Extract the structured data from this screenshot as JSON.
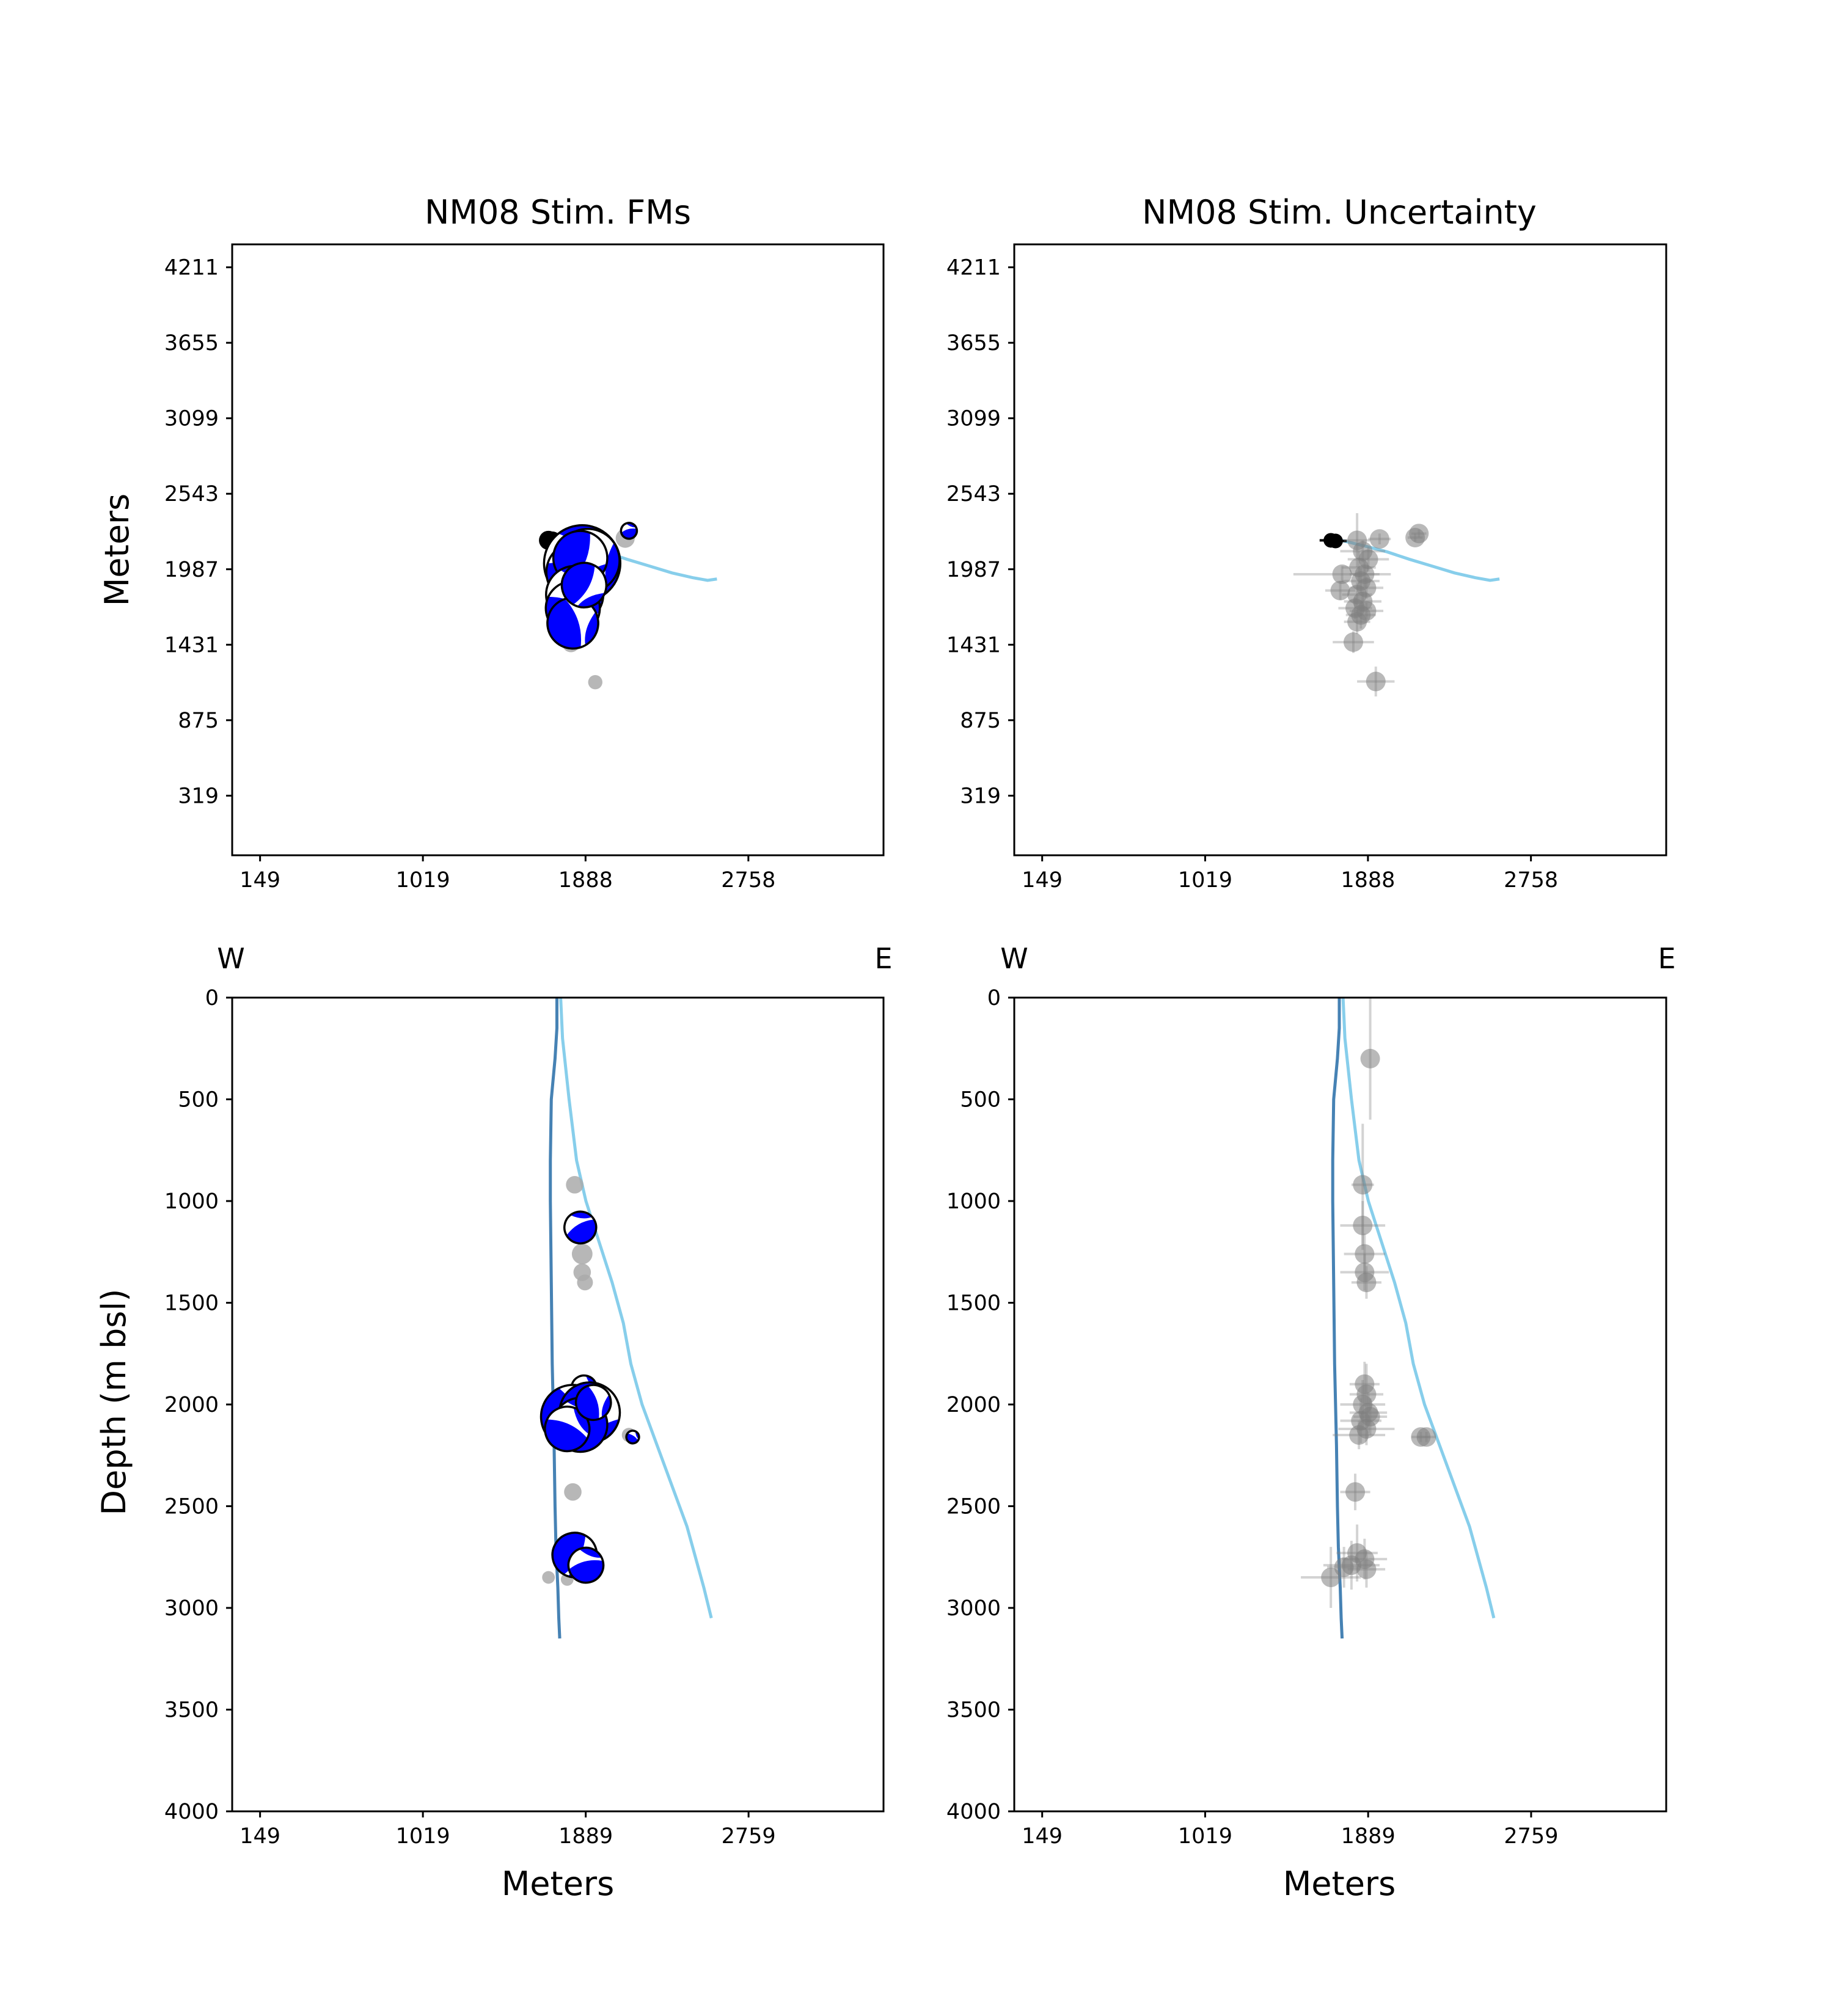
{
  "figure": {
    "panels": [
      {
        "id": "p1",
        "title": "NM08 Stim. FMs",
        "ylabel": "Meters",
        "xlabel": ""
      },
      {
        "id": "p2",
        "title": "NM08 Stim. Uncertainty",
        "ylabel": "",
        "xlabel": ""
      },
      {
        "id": "p3",
        "title": "",
        "ylabel": "Depth (m bsl)",
        "xlabel": "Meters",
        "compass": [
          "W",
          "E"
        ]
      },
      {
        "id": "p4",
        "title": "",
        "ylabel": "",
        "xlabel": "Meters",
        "compass": [
          "W",
          "E"
        ]
      }
    ]
  },
  "chart_data": [
    {
      "type": "scatter",
      "title": "NM08 Stim. FMs",
      "xlabel": "",
      "ylabel": "Meters",
      "xlim": [
        0,
        3480
      ],
      "ylim": [
        -120,
        4380
      ],
      "xticks": [
        "149",
        "1019",
        "1888",
        "2758"
      ],
      "xtick_values": [
        149,
        1019,
        1888,
        2758
      ],
      "yticks": [
        "319",
        "875",
        "1431",
        "1987",
        "2543",
        "3099",
        "3655",
        "4211"
      ],
      "ytick_values": [
        319,
        875,
        1431,
        1987,
        2543,
        3099,
        3655,
        4211
      ],
      "well_tracks": [
        {
          "color": "#87ceeb",
          "x": [
            1665,
            1760,
            1880,
            1990,
            2110,
            2230,
            2350,
            2460,
            2540,
            2590
          ],
          "y": [
            2212,
            2195,
            2155,
            2115,
            2060,
            2010,
            1960,
            1925,
            1905,
            1915
          ]
        }
      ],
      "focal_mechanisms": [
        {
          "x": 1870,
          "y": 2030,
          "size": 2.4
        },
        {
          "x": 1840,
          "y": 1965,
          "size": 1.9
        },
        {
          "x": 1900,
          "y": 2050,
          "size": 2.0
        },
        {
          "x": 1860,
          "y": 2070,
          "size": 1.7
        },
        {
          "x": 1830,
          "y": 1800,
          "size": 1.8
        },
        {
          "x": 1820,
          "y": 1700,
          "size": 1.7
        },
        {
          "x": 1820,
          "y": 1590,
          "size": 1.6
        },
        {
          "x": 1880,
          "y": 1870,
          "size": 1.4
        },
        {
          "x": 2120,
          "y": 2270,
          "size": 0.5
        }
      ],
      "events": [
        {
          "x": 1690,
          "y": 2200,
          "size": 0.6,
          "color": "#000000"
        },
        {
          "x": 1710,
          "y": 2195,
          "size": 0.6,
          "color": "#000000"
        },
        {
          "x": 1820,
          "y": 2210,
          "size": 0.55,
          "color": "#aaaaaa"
        },
        {
          "x": 1950,
          "y": 2210,
          "size": 0.55,
          "color": "#aaaaaa"
        },
        {
          "x": 2100,
          "y": 2215,
          "size": 0.6,
          "color": "#aaaaaa"
        },
        {
          "x": 1810,
          "y": 1440,
          "size": 0.55,
          "color": "#aaaaaa"
        },
        {
          "x": 1940,
          "y": 1155,
          "size": 0.45,
          "color": "#aaaaaa"
        }
      ]
    },
    {
      "type": "scatter",
      "title": "NM08 Stim. Uncertainty",
      "xlabel": "",
      "ylabel": "",
      "xlim": [
        0,
        3480
      ],
      "ylim": [
        -120,
        4380
      ],
      "xticks": [
        "149",
        "1019",
        "1888",
        "2758"
      ],
      "xtick_values": [
        149,
        1019,
        1888,
        2758
      ],
      "yticks": [
        "319",
        "875",
        "1431",
        "1987",
        "2543",
        "3099",
        "3655",
        "4211"
      ],
      "ytick_values": [
        319,
        875,
        1431,
        1987,
        2543,
        3099,
        3655,
        4211
      ],
      "well_tracks": [
        {
          "color": "#87ceeb",
          "x": [
            1665,
            1760,
            1880,
            1990,
            2110,
            2230,
            2350,
            2460,
            2540,
            2590
          ],
          "y": [
            2212,
            2195,
            2155,
            2115,
            2060,
            2010,
            1960,
            1925,
            1905,
            1915
          ]
        }
      ],
      "events": [
        {
          "x": 1690,
          "y": 2200,
          "xerr": 60,
          "yerr": 40,
          "color": "#000000"
        },
        {
          "x": 1715,
          "y": 2195,
          "xerr": 60,
          "yerr": 40,
          "color": "#000000"
        },
        {
          "x": 1830,
          "y": 2200,
          "xerr": 70,
          "yerr": 200,
          "color": "#808080"
        },
        {
          "x": 1860,
          "y": 2120,
          "xerr": 120,
          "yerr": 80,
          "color": "#808080"
        },
        {
          "x": 1890,
          "y": 2060,
          "xerr": 110,
          "yerr": 90,
          "color": "#808080"
        },
        {
          "x": 1840,
          "y": 2000,
          "xerr": 90,
          "yerr": 120,
          "color": "#808080"
        },
        {
          "x": 1870,
          "y": 1950,
          "xerr": 80,
          "yerr": 100,
          "color": "#808080"
        },
        {
          "x": 1850,
          "y": 1900,
          "xerr": 100,
          "yerr": 90,
          "color": "#808080"
        },
        {
          "x": 1880,
          "y": 1850,
          "xerr": 90,
          "yerr": 80,
          "color": "#808080"
        },
        {
          "x": 1830,
          "y": 1800,
          "xerr": 80,
          "yerr": 90,
          "color": "#808080"
        },
        {
          "x": 1860,
          "y": 1750,
          "xerr": 100,
          "yerr": 70,
          "color": "#808080"
        },
        {
          "x": 1820,
          "y": 1700,
          "xerr": 90,
          "yerr": 80,
          "color": "#808080"
        },
        {
          "x": 1850,
          "y": 1650,
          "xerr": 80,
          "yerr": 100,
          "color": "#808080"
        },
        {
          "x": 1830,
          "y": 1600,
          "xerr": 70,
          "yerr": 90,
          "color": "#808080"
        },
        {
          "x": 1880,
          "y": 1680,
          "xerr": 90,
          "yerr": 60,
          "color": "#808080"
        },
        {
          "x": 1750,
          "y": 1950,
          "xerr": 260,
          "yerr": 60,
          "color": "#808080"
        },
        {
          "x": 1740,
          "y": 1830,
          "xerr": 80,
          "yerr": 70,
          "color": "#808080"
        },
        {
          "x": 1810,
          "y": 1450,
          "xerr": 110,
          "yerr": 80,
          "color": "#808080"
        },
        {
          "x": 1930,
          "y": 1160,
          "xerr": 100,
          "yerr": 110,
          "color": "#808080"
        },
        {
          "x": 1950,
          "y": 2210,
          "xerr": 60,
          "yerr": 40,
          "color": "#808080"
        },
        {
          "x": 2140,
          "y": 2220,
          "xerr": 40,
          "yerr": 30,
          "color": "#808080"
        },
        {
          "x": 2160,
          "y": 2250,
          "xerr": 40,
          "yerr": 30,
          "color": "#808080"
        }
      ]
    },
    {
      "type": "scatter",
      "title": "",
      "xlabel": "Meters",
      "ylabel": "Depth (m bsl)",
      "xlim": [
        0,
        3480
      ],
      "ylim": [
        4000,
        0
      ],
      "xticks": [
        "149",
        "1019",
        "1889",
        "2759"
      ],
      "xtick_values": [
        149,
        1019,
        1889,
        2759
      ],
      "yticks": [
        "0",
        "500",
        "1000",
        "1500",
        "2000",
        "2500",
        "3000",
        "3500",
        "4000"
      ],
      "ytick_values": [
        0,
        500,
        1000,
        1500,
        2000,
        2500,
        3000,
        3500,
        4000
      ],
      "well_tracks": [
        {
          "color": "#4682b4",
          "x": [
            1735,
            1735,
            1725,
            1705,
            1700,
            1700,
            1705,
            1710,
            1715,
            1720,
            1725,
            1730,
            1740,
            1745,
            1750
          ],
          "y": [
            0,
            150,
            300,
            500,
            800,
            1000,
            1400,
            1800,
            2000,
            2200,
            2500,
            2700,
            2900,
            3050,
            3150
          ]
        },
        {
          "color": "#87ceeb",
          "x": [
            1755,
            1765,
            1800,
            1840,
            1890,
            1960,
            2030,
            2090,
            2130,
            2190,
            2270,
            2350,
            2430,
            2490,
            2520,
            2560
          ],
          "y": [
            0,
            200,
            500,
            800,
            1000,
            1200,
            1400,
            1600,
            1800,
            2000,
            2200,
            2400,
            2600,
            2800,
            2900,
            3050
          ]
        }
      ],
      "focal_mechanisms": [
        {
          "x": 1860,
          "y": 1130,
          "size": 1.0
        },
        {
          "x": 1880,
          "y": 1920,
          "size": 0.8
        },
        {
          "x": 1820,
          "y": 2060,
          "size": 2.0
        },
        {
          "x": 1910,
          "y": 2040,
          "size": 1.9
        },
        {
          "x": 1860,
          "y": 2100,
          "size": 1.7
        },
        {
          "x": 1790,
          "y": 2120,
          "size": 1.4
        },
        {
          "x": 1930,
          "y": 1990,
          "size": 1.1
        },
        {
          "x": 1830,
          "y": 2740,
          "size": 1.4
        },
        {
          "x": 1890,
          "y": 2790,
          "size": 1.1
        },
        {
          "x": 2140,
          "y": 2160,
          "size": 0.4
        }
      ],
      "events": [
        {
          "x": 1830,
          "y": 920,
          "size": 0.55,
          "color": "#aaaaaa"
        },
        {
          "x": 1870,
          "y": 1260,
          "size": 0.65,
          "color": "#aaaaaa"
        },
        {
          "x": 1870,
          "y": 1350,
          "size": 0.55,
          "color": "#aaaaaa"
        },
        {
          "x": 1885,
          "y": 1400,
          "size": 0.5,
          "color": "#aaaaaa"
        },
        {
          "x": 1820,
          "y": 2430,
          "size": 0.55,
          "color": "#aaaaaa"
        },
        {
          "x": 2120,
          "y": 2150,
          "size": 0.45,
          "color": "#aaaaaa"
        },
        {
          "x": 1690,
          "y": 2850,
          "size": 0.4,
          "color": "#aaaaaa"
        },
        {
          "x": 1790,
          "y": 2860,
          "size": 0.4,
          "color": "#aaaaaa"
        }
      ]
    },
    {
      "type": "scatter",
      "title": "",
      "xlabel": "Meters",
      "ylabel": "",
      "xlim": [
        0,
        3480
      ],
      "ylim": [
        4000,
        0
      ],
      "xticks": [
        "149",
        "1019",
        "1889",
        "2759"
      ],
      "xtick_values": [
        149,
        1019,
        1889,
        2759
      ],
      "yticks": [
        "0",
        "500",
        "1000",
        "1500",
        "2000",
        "2500",
        "3000",
        "3500",
        "4000"
      ],
      "ytick_values": [
        0,
        500,
        1000,
        1500,
        2000,
        2500,
        3000,
        3500,
        4000
      ],
      "well_tracks": [
        {
          "color": "#4682b4",
          "x": [
            1735,
            1735,
            1725,
            1705,
            1700,
            1700,
            1705,
            1710,
            1715,
            1720,
            1725,
            1730,
            1740,
            1745,
            1750
          ],
          "y": [
            0,
            150,
            300,
            500,
            800,
            1000,
            1400,
            1800,
            2000,
            2200,
            2500,
            2700,
            2900,
            3050,
            3150
          ]
        },
        {
          "color": "#87ceeb",
          "x": [
            1755,
            1765,
            1800,
            1840,
            1890,
            1960,
            2030,
            2090,
            2130,
            2190,
            2270,
            2350,
            2430,
            2490,
            2520,
            2560
          ],
          "y": [
            0,
            200,
            500,
            800,
            1000,
            1200,
            1400,
            1600,
            1800,
            2000,
            2200,
            2400,
            2600,
            2800,
            2900,
            3050
          ]
        }
      ],
      "events": [
        {
          "x": 1900,
          "y": 300,
          "xerr": 0,
          "yerr": 300,
          "color": "#808080"
        },
        {
          "x": 1860,
          "y": 920,
          "xerr": 60,
          "yerr": 300,
          "color": "#808080"
        },
        {
          "x": 1860,
          "y": 1120,
          "xerr": 120,
          "yerr": 120,
          "color": "#808080"
        },
        {
          "x": 1870,
          "y": 1260,
          "xerr": 110,
          "yerr": 100,
          "color": "#808080"
        },
        {
          "x": 1870,
          "y": 1350,
          "xerr": 130,
          "yerr": 90,
          "color": "#808080"
        },
        {
          "x": 1880,
          "y": 1400,
          "xerr": 80,
          "yerr": 80,
          "color": "#808080"
        },
        {
          "x": 1880,
          "y": 1950,
          "xerr": 90,
          "yerr": 150,
          "color": "#808080"
        },
        {
          "x": 1860,
          "y": 2000,
          "xerr": 120,
          "yerr": 120,
          "color": "#808080"
        },
        {
          "x": 1890,
          "y": 2040,
          "xerr": 100,
          "yerr": 100,
          "color": "#808080"
        },
        {
          "x": 1850,
          "y": 2080,
          "xerr": 110,
          "yerr": 110,
          "color": "#808080"
        },
        {
          "x": 1880,
          "y": 2120,
          "xerr": 150,
          "yerr": 80,
          "color": "#808080"
        },
        {
          "x": 1900,
          "y": 2060,
          "xerr": 90,
          "yerr": 90,
          "color": "#808080"
        },
        {
          "x": 1840,
          "y": 2150,
          "xerr": 140,
          "yerr": 70,
          "color": "#808080"
        },
        {
          "x": 1870,
          "y": 1900,
          "xerr": 80,
          "yerr": 110,
          "color": "#808080"
        },
        {
          "x": 2170,
          "y": 2160,
          "xerr": 50,
          "yerr": 25,
          "color": "#808080"
        },
        {
          "x": 2200,
          "y": 2160,
          "xerr": 50,
          "yerr": 25,
          "color": "#808080"
        },
        {
          "x": 1820,
          "y": 2430,
          "xerr": 80,
          "yerr": 90,
          "color": "#808080"
        },
        {
          "x": 1830,
          "y": 2730,
          "xerr": 110,
          "yerr": 140,
          "color": "#808080"
        },
        {
          "x": 1870,
          "y": 2760,
          "xerr": 120,
          "yerr": 100,
          "color": "#808080"
        },
        {
          "x": 1800,
          "y": 2790,
          "xerr": 150,
          "yerr": 120,
          "color": "#808080"
        },
        {
          "x": 1880,
          "y": 2810,
          "xerr": 100,
          "yerr": 90,
          "color": "#808080"
        },
        {
          "x": 1690,
          "y": 2850,
          "xerr": 160,
          "yerr": 150,
          "color": "#808080"
        },
        {
          "x": 1760,
          "y": 2800,
          "xerr": 90,
          "yerr": 100,
          "color": "#808080"
        }
      ]
    }
  ]
}
